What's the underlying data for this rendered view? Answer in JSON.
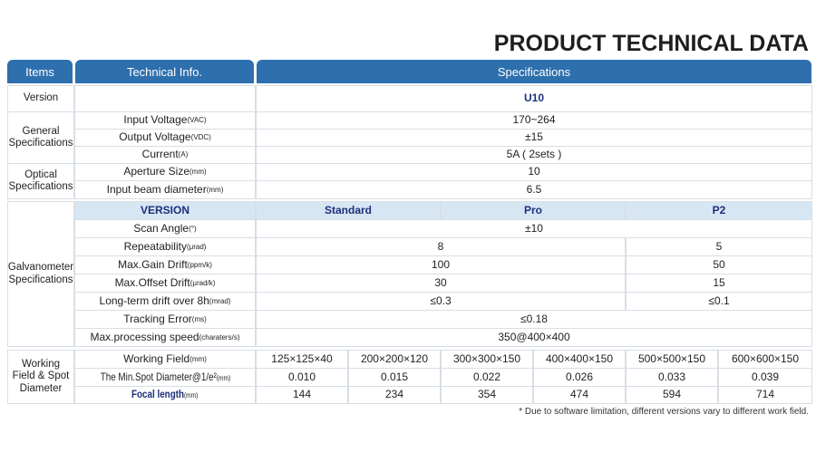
{
  "title": "PRODUCT TECHNICAL DATA",
  "headers": {
    "items": "Items",
    "info": "Technical Info.",
    "spec": "Specifications"
  },
  "version": {
    "label": "Version",
    "value": "U10"
  },
  "general": {
    "label": "General Specifications",
    "rows": [
      {
        "name": "Input Voltage",
        "unit": "(VAC)",
        "value": "170~264"
      },
      {
        "name": "Output Voltage",
        "unit": "(VDC)",
        "value": "±15"
      },
      {
        "name": "Current",
        "unit": "(A)",
        "value": "5A ( 2sets )"
      }
    ]
  },
  "optical": {
    "label": "Optical Specifications",
    "rows": [
      {
        "name": "Aperture Size",
        "unit": "(mm)",
        "value": "10"
      },
      {
        "name": "Input beam diameter",
        "unit": "(mm)",
        "value": "6.5"
      }
    ]
  },
  "galvo": {
    "label": "Galvanometer Specifications",
    "version_label": "VERSION",
    "versions": [
      "Standard",
      "Pro",
      "P2"
    ],
    "scan": {
      "name": "Scan Angle",
      "unit": "(°)",
      "value": "±10"
    },
    "repeat": {
      "name": "Repeatability",
      "unit": "(μrad)",
      "a": "8",
      "b": "5"
    },
    "gain": {
      "name": "Max.Gain Drift",
      "unit": "(ppm/k)",
      "a": "100",
      "b": "50"
    },
    "offset": {
      "name": "Max.Offset Drift",
      "unit": "(μrad/k)",
      "a": "30",
      "b": "15"
    },
    "longterm": {
      "name": "Long-term drift over 8h",
      "unit": "(mrad)",
      "a": "≤0.3",
      "b": "≤0.1"
    },
    "tracking": {
      "name": "Tracking Error",
      "unit": "(ms)",
      "value": "≤0.18"
    },
    "speed": {
      "name": "Max.processing speed",
      "unit": "(charaters/s)",
      "value": "350@400×400"
    }
  },
  "field": {
    "label": "Working Field & Spot Diameter",
    "wf": {
      "name": "Working Field",
      "unit": "(mm)"
    },
    "spot": {
      "name": "The Min.Spot Diameter@1/e²",
      "unit": "(mm)"
    },
    "focal": {
      "name": "Focal length",
      "unit": "(mm)"
    },
    "cols": [
      {
        "field": "125×125×40",
        "spot": "0.010",
        "focal": "144"
      },
      {
        "field": "200×200×120",
        "spot": "0.015",
        "focal": "234"
      },
      {
        "field": "300×300×150",
        "spot": "0.022",
        "focal": "354"
      },
      {
        "field": "400×400×150",
        "spot": "0.026",
        "focal": "474"
      },
      {
        "field": "500×500×150",
        "spot": "0.033",
        "focal": "594"
      },
      {
        "field": "600×600×150",
        "spot": "0.039",
        "focal": "714"
      }
    ]
  },
  "note": "* Due to software limitation, different versions vary to different work field."
}
